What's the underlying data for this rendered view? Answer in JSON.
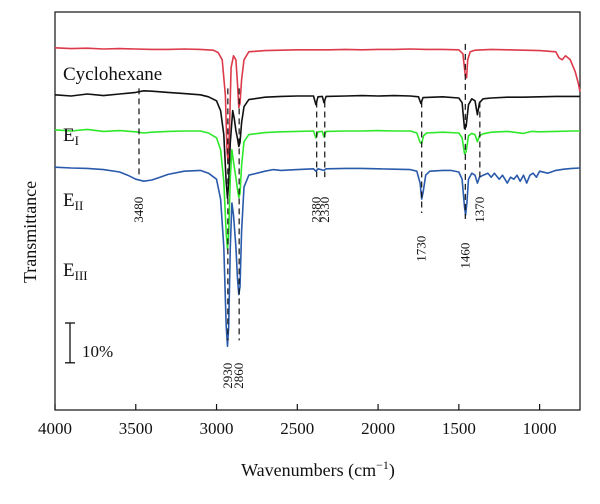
{
  "chart_data": {
    "type": "line",
    "title": "",
    "xlabel": "Wavenumbers (cm",
    "xlabel_sup": "−1",
    "xlabel_close": ")",
    "ylabel": "Transmittance",
    "xlim": [
      4000,
      750
    ],
    "x_ticks": [
      "4000",
      "3500",
      "3000",
      "2500",
      "2000",
      "1500",
      "1000"
    ],
    "x_tick_values": [
      4000,
      3500,
      3000,
      2500,
      2000,
      1500,
      1000
    ],
    "y_ticks_shown": false,
    "grid": false,
    "scale_bar": {
      "label": "10%",
      "value": 10
    },
    "series": [
      {
        "label": "Cyclohexane",
        "label_sub": "",
        "color": "#dc3a4a",
        "baseline": 91,
        "points": [
          [
            4000,
            0
          ],
          [
            3900,
            -0.2
          ],
          [
            3800,
            -0.1
          ],
          [
            3700,
            -0.3
          ],
          [
            3600,
            -0.2
          ],
          [
            3500,
            -0.3
          ],
          [
            3400,
            -0.4
          ],
          [
            3300,
            -0.4
          ],
          [
            3200,
            -0.3
          ],
          [
            3100,
            -0.4
          ],
          [
            3020,
            -0.6
          ],
          [
            2990,
            -1.2
          ],
          [
            2965,
            -3
          ],
          [
            2945,
            -12
          ],
          [
            2935,
            -26
          ],
          [
            2928,
            -29
          ],
          [
            2920,
            -20
          ],
          [
            2910,
            -5
          ],
          [
            2895,
            -2
          ],
          [
            2880,
            -3
          ],
          [
            2870,
            -9
          ],
          [
            2862,
            -15
          ],
          [
            2855,
            -14
          ],
          [
            2845,
            -8
          ],
          [
            2830,
            -3
          ],
          [
            2800,
            -1
          ],
          [
            2700,
            -0.7
          ],
          [
            2600,
            -0.6
          ],
          [
            2500,
            -0.5
          ],
          [
            2400,
            -0.5
          ],
          [
            2300,
            -0.5
          ],
          [
            2200,
            -0.4
          ],
          [
            2100,
            -0.5
          ],
          [
            2000,
            -0.4
          ],
          [
            1900,
            -0.4
          ],
          [
            1800,
            -0.3
          ],
          [
            1700,
            -0.4
          ],
          [
            1600,
            -0.4
          ],
          [
            1500,
            -0.5
          ],
          [
            1475,
            -1.5
          ],
          [
            1460,
            -7
          ],
          [
            1452,
            -7.5
          ],
          [
            1445,
            -3
          ],
          [
            1430,
            -1
          ],
          [
            1400,
            -0.6
          ],
          [
            1350,
            -0.5
          ],
          [
            1300,
            -0.4
          ],
          [
            1200,
            -0.5
          ],
          [
            1100,
            -0.6
          ],
          [
            1000,
            -0.7
          ],
          [
            900,
            -1
          ],
          [
            880,
            -2.5
          ],
          [
            860,
            -3
          ],
          [
            840,
            -2
          ],
          [
            810,
            -3
          ],
          [
            780,
            -6
          ],
          [
            760,
            -9
          ],
          [
            750,
            -11
          ]
        ]
      },
      {
        "label": "E",
        "label_sub": "I",
        "color": "#111111",
        "baseline": 79.2,
        "points": [
          [
            4000,
            0
          ],
          [
            3900,
            -0.3
          ],
          [
            3800,
            0.2
          ],
          [
            3700,
            -0.2
          ],
          [
            3600,
            0.2
          ],
          [
            3500,
            0.6
          ],
          [
            3450,
            1.0
          ],
          [
            3400,
            0.9
          ],
          [
            3300,
            0.6
          ],
          [
            3200,
            0.3
          ],
          [
            3100,
            0
          ],
          [
            3050,
            -0.5
          ],
          [
            3000,
            -1.5
          ],
          [
            2975,
            -4
          ],
          [
            2955,
            -10
          ],
          [
            2940,
            -22
          ],
          [
            2932,
            -26
          ],
          [
            2925,
            -22
          ],
          [
            2915,
            -12
          ],
          [
            2900,
            -4
          ],
          [
            2890,
            -6
          ],
          [
            2880,
            -9
          ],
          [
            2870,
            -11
          ],
          [
            2862,
            -13
          ],
          [
            2855,
            -12
          ],
          [
            2845,
            -7
          ],
          [
            2830,
            -3
          ],
          [
            2800,
            -1.2
          ],
          [
            2700,
            -0.6
          ],
          [
            2600,
            -0.4
          ],
          [
            2500,
            -0.3
          ],
          [
            2400,
            -0.3
          ],
          [
            2385,
            -2.5
          ],
          [
            2372,
            -0.5
          ],
          [
            2345,
            -0.4
          ],
          [
            2335,
            -2
          ],
          [
            2322,
            -0.4
          ],
          [
            2200,
            -0.3
          ],
          [
            2100,
            -0.2
          ],
          [
            2000,
            -0.3
          ],
          [
            1900,
            -0.2
          ],
          [
            1800,
            -0.3
          ],
          [
            1750,
            -0.5
          ],
          [
            1735,
            -2.2
          ],
          [
            1722,
            -0.7
          ],
          [
            1600,
            -0.5
          ],
          [
            1500,
            -0.8
          ],
          [
            1480,
            -2
          ],
          [
            1465,
            -8.5
          ],
          [
            1455,
            -8
          ],
          [
            1440,
            -2.5
          ],
          [
            1420,
            -1
          ],
          [
            1400,
            -1.5
          ],
          [
            1385,
            -5
          ],
          [
            1372,
            -2
          ],
          [
            1350,
            -1
          ],
          [
            1300,
            -0.8
          ],
          [
            1200,
            -0.6
          ],
          [
            1100,
            -0.6
          ],
          [
            1000,
            -0.5
          ],
          [
            900,
            -0.4
          ],
          [
            800,
            -0.4
          ],
          [
            750,
            -0.4
          ]
        ]
      },
      {
        "label": "E",
        "label_sub": "II",
        "color": "#2ee82a",
        "baseline": 70.4,
        "points": [
          [
            4000,
            0
          ],
          [
            3900,
            -0.3
          ],
          [
            3800,
            0.1
          ],
          [
            3700,
            -0.4
          ],
          [
            3600,
            -0.2
          ],
          [
            3500,
            -0.5
          ],
          [
            3450,
            -0.8
          ],
          [
            3400,
            -0.6
          ],
          [
            3300,
            -0.4
          ],
          [
            3200,
            -0.3
          ],
          [
            3100,
            -0.3
          ],
          [
            3050,
            -0.8
          ],
          [
            3000,
            -2
          ],
          [
            2975,
            -5
          ],
          [
            2955,
            -13
          ],
          [
            2940,
            -26
          ],
          [
            2932,
            -30
          ],
          [
            2925,
            -26
          ],
          [
            2915,
            -12
          ],
          [
            2905,
            -5
          ],
          [
            2895,
            -8
          ],
          [
            2880,
            -12
          ],
          [
            2870,
            -15
          ],
          [
            2862,
            -17
          ],
          [
            2855,
            -16
          ],
          [
            2845,
            -9
          ],
          [
            2830,
            -3
          ],
          [
            2800,
            -1.2
          ],
          [
            2700,
            -0.7
          ],
          [
            2600,
            -0.5
          ],
          [
            2500,
            -0.4
          ],
          [
            2400,
            -0.3
          ],
          [
            2385,
            -2
          ],
          [
            2372,
            -0.5
          ],
          [
            2345,
            -0.4
          ],
          [
            2335,
            -1.8
          ],
          [
            2322,
            -0.4
          ],
          [
            2200,
            -0.3
          ],
          [
            2100,
            -0.3
          ],
          [
            2000,
            -0.2
          ],
          [
            1900,
            -0.3
          ],
          [
            1800,
            -0.3
          ],
          [
            1760,
            -0.8
          ],
          [
            1740,
            -3.2
          ],
          [
            1730,
            -3.4
          ],
          [
            1718,
            -1.5
          ],
          [
            1700,
            -0.8
          ],
          [
            1600,
            -0.6
          ],
          [
            1500,
            -0.8
          ],
          [
            1480,
            -2
          ],
          [
            1465,
            -6
          ],
          [
            1455,
            -5.5
          ],
          [
            1440,
            -1.5
          ],
          [
            1420,
            -0.9
          ],
          [
            1400,
            -1.2
          ],
          [
            1385,
            -3
          ],
          [
            1372,
            -1.5
          ],
          [
            1350,
            -1
          ],
          [
            1300,
            -0.6
          ],
          [
            1200,
            -0.4
          ],
          [
            1100,
            -0.9
          ],
          [
            1050,
            -0.4
          ],
          [
            1000,
            -0.5
          ],
          [
            900,
            -0.4
          ],
          [
            800,
            -0.3
          ],
          [
            750,
            -0.3
          ]
        ]
      },
      {
        "label": "E",
        "label_sub": "III",
        "color": "#2a5aaa",
        "baseline": 61,
        "points": [
          [
            4000,
            0
          ],
          [
            3900,
            -0.2
          ],
          [
            3800,
            -0.3
          ],
          [
            3700,
            -0.6
          ],
          [
            3600,
            -1.2
          ],
          [
            3550,
            -2
          ],
          [
            3500,
            -3
          ],
          [
            3450,
            -3.5
          ],
          [
            3400,
            -3.2
          ],
          [
            3350,
            -2.5
          ],
          [
            3300,
            -1.8
          ],
          [
            3200,
            -1
          ],
          [
            3100,
            -0.8
          ],
          [
            3050,
            -1.5
          ],
          [
            3000,
            -3
          ],
          [
            2975,
            -8
          ],
          [
            2955,
            -20
          ],
          [
            2940,
            -40
          ],
          [
            2932,
            -45
          ],
          [
            2925,
            -40
          ],
          [
            2915,
            -20
          ],
          [
            2905,
            -9
          ],
          [
            2895,
            -12
          ],
          [
            2880,
            -20
          ],
          [
            2870,
            -28
          ],
          [
            2862,
            -32
          ],
          [
            2855,
            -30
          ],
          [
            2845,
            -16
          ],
          [
            2830,
            -5
          ],
          [
            2800,
            -2
          ],
          [
            2700,
            -1
          ],
          [
            2650,
            -0.6
          ],
          [
            2600,
            -0.8
          ],
          [
            2500,
            -0.6
          ],
          [
            2400,
            -0.4
          ],
          [
            2385,
            -1
          ],
          [
            2372,
            -0.4
          ],
          [
            2335,
            -0.8
          ],
          [
            2322,
            -0.4
          ],
          [
            2200,
            -0.3
          ],
          [
            2100,
            -0.3
          ],
          [
            2000,
            -0.4
          ],
          [
            1900,
            -0.5
          ],
          [
            1800,
            -0.6
          ],
          [
            1760,
            -1
          ],
          [
            1740,
            -4
          ],
          [
            1730,
            -8
          ],
          [
            1720,
            -6
          ],
          [
            1705,
            -2
          ],
          [
            1680,
            -1
          ],
          [
            1600,
            -0.8
          ],
          [
            1550,
            -0.8
          ],
          [
            1500,
            -1.2
          ],
          [
            1480,
            -3
          ],
          [
            1465,
            -10
          ],
          [
            1458,
            -12
          ],
          [
            1450,
            -9
          ],
          [
            1440,
            -3
          ],
          [
            1420,
            -1.5
          ],
          [
            1400,
            -2
          ],
          [
            1385,
            -4
          ],
          [
            1372,
            -2.5
          ],
          [
            1350,
            -2
          ],
          [
            1320,
            -1.5
          ],
          [
            1300,
            -2.5
          ],
          [
            1280,
            -1.5
          ],
          [
            1250,
            -3
          ],
          [
            1230,
            -2
          ],
          [
            1200,
            -4
          ],
          [
            1180,
            -2.5
          ],
          [
            1160,
            -3
          ],
          [
            1140,
            -2
          ],
          [
            1120,
            -3.5
          ],
          [
            1100,
            -2
          ],
          [
            1080,
            -4
          ],
          [
            1060,
            -2
          ],
          [
            1040,
            -1.5
          ],
          [
            1020,
            -2.5
          ],
          [
            1000,
            -1
          ],
          [
            950,
            -1.5
          ],
          [
            900,
            -0.8
          ],
          [
            850,
            -0.5
          ],
          [
            800,
            -0.3
          ],
          [
            750,
            -0.2
          ]
        ]
      }
    ],
    "peaks": [
      {
        "label": "3480",
        "x": 3480,
        "line_top": 80.8,
        "line_bottom": 58.5,
        "label_y": 50.3
      },
      {
        "label": "2930",
        "x": 2930,
        "line_top": 80.8,
        "line_bottom": 17.5,
        "label_y": 8.6
      },
      {
        "label": "2860",
        "x": 2860,
        "line_top": 80.8,
        "line_bottom": 17.5,
        "label_y": 8.6
      },
      {
        "label": "2380",
        "x": 2380,
        "line_top": 77.5,
        "line_bottom": 58.5,
        "label_y": 50.3
      },
      {
        "label": "2330",
        "x": 2330,
        "line_top": 77.5,
        "line_bottom": 58.5,
        "label_y": 50.3
      },
      {
        "label": "1730",
        "x": 1730,
        "line_top": 77.5,
        "line_bottom": 49.5,
        "label_y": 40.5
      },
      {
        "label": "1460",
        "x": 1460,
        "line_top": 92,
        "line_bottom": 48,
        "label_y": 38.8
      },
      {
        "label": "1370",
        "x": 1370,
        "line_top": 77.5,
        "line_bottom": 58.5,
        "label_y": 50.3
      }
    ]
  }
}
